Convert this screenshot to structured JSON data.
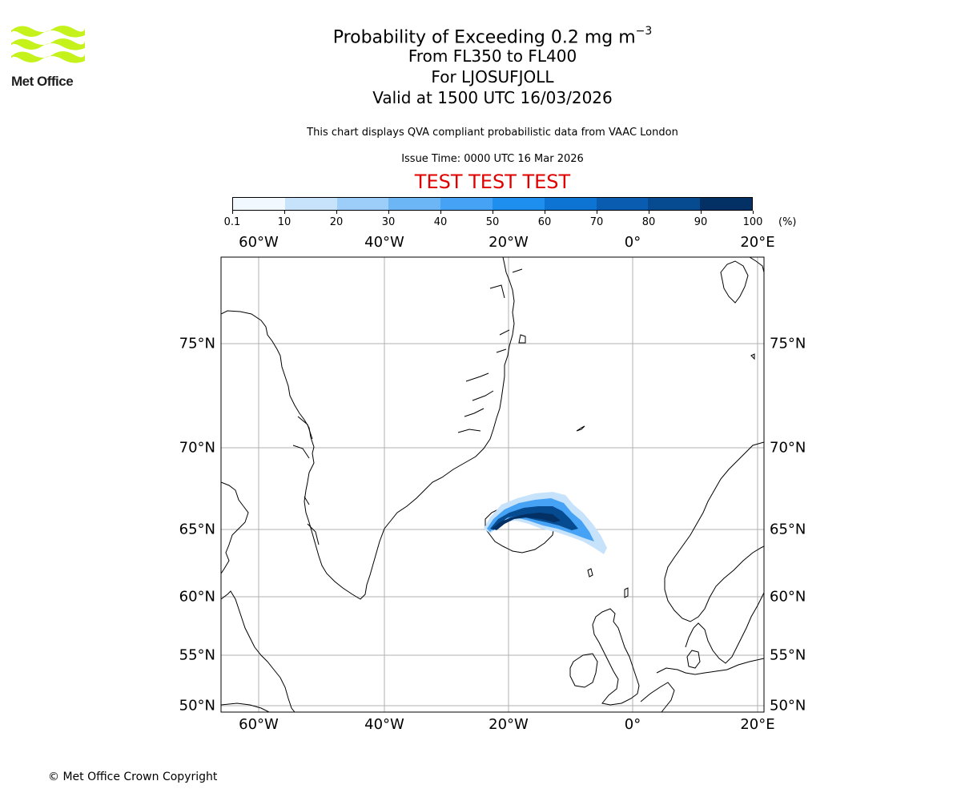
{
  "logo": {
    "text": "Met Office",
    "color": "#c6f21c"
  },
  "title": {
    "line1": "Probability of Exceeding 0.2 mg m",
    "line1_exponent": "−3",
    "line2": "From FL350 to FL400",
    "line3": "For LJOSUFJOLL",
    "line4": "Valid at 1500 UTC 16/03/2026"
  },
  "subtitle": "This chart displays QVA compliant probabilistic data from VAAC London",
  "issue_time": "Issue Time: 0000 UTC 16 Mar 2026",
  "test_banner": "TEST TEST TEST",
  "colorbar": {
    "labels": [
      "0.1",
      "10",
      "20",
      "30",
      "40",
      "50",
      "60",
      "70",
      "80",
      "90",
      "100"
    ],
    "unit": "(%)",
    "colors": [
      "#f2f8ff",
      "#c7e2fb",
      "#9dcdf9",
      "#6db6f6",
      "#45a2f4",
      "#1e8eef",
      "#0d74d4",
      "#095cb0",
      "#064a8f",
      "#033065"
    ]
  },
  "map": {
    "lon_labels": [
      "60°W",
      "40°W",
      "20°W",
      "0°",
      "20°E"
    ],
    "lat_labels": [
      "75°N",
      "70°N",
      "65°N",
      "60°N",
      "55°N",
      "50°N"
    ],
    "plume_color": "#0d74d4",
    "coastline_color": "#000000",
    "grid_color": "#b0b0b0"
  },
  "copyright": "© Met Office Crown Copyright"
}
